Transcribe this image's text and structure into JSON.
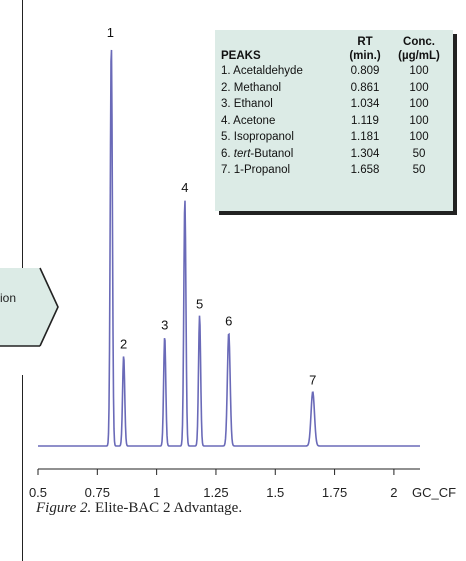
{
  "callout": {
    "text": "ion"
  },
  "table": {
    "headers": {
      "peaks": "PEAKS",
      "rt_top": "RT",
      "rt_bottom": "(min.)",
      "conc_top": "Conc.",
      "conc_bottom": "(µg/mL)"
    },
    "rows": [
      {
        "name": "1. Acetaldehyde",
        "name_prefix": "",
        "name_italic": "",
        "name_suffix": "",
        "rt": "0.809",
        "conc": "100"
      },
      {
        "name": "2. Methanol",
        "name_prefix": "",
        "name_italic": "",
        "name_suffix": "",
        "rt": "0.861",
        "conc": "100"
      },
      {
        "name": "3. Ethanol",
        "name_prefix": "",
        "name_italic": "",
        "name_suffix": "",
        "rt": "1.034",
        "conc": "100"
      },
      {
        "name": "4. Acetone",
        "name_prefix": "",
        "name_italic": "",
        "name_suffix": "",
        "rt": "1.119",
        "conc": "100"
      },
      {
        "name": "5. Isopropanol",
        "name_prefix": "",
        "name_italic": "",
        "name_suffix": "",
        "rt": "1.181",
        "conc": "100"
      },
      {
        "name": "",
        "name_prefix": "6. ",
        "name_italic": "tert",
        "name_suffix": "-Butanol",
        "rt": "1.304",
        "conc": "50"
      },
      {
        "name": "7. 1-Propanol",
        "name_prefix": "",
        "name_italic": "",
        "name_suffix": "",
        "rt": "1.658",
        "conc": "50"
      }
    ]
  },
  "caption": {
    "figure": "Figure 2.",
    "text": " Elite-BAC 2 Advantage."
  },
  "chart_data": {
    "type": "line",
    "x_unit_label": "GC_CF",
    "xlim": [
      0.5,
      2.11
    ],
    "ylim": [
      0,
      1
    ],
    "xticks": [
      0.5,
      0.75,
      1,
      1.25,
      1.5,
      1.75,
      2
    ],
    "xtick_labels": [
      "0.5",
      "0.75",
      "1",
      "1.25",
      "1.5",
      "1.75",
      "2"
    ],
    "baseline": 0.0,
    "line_color": "#6a6ab8",
    "peaks": [
      {
        "label": "1",
        "rt": 0.809,
        "height": 1.0
      },
      {
        "label": "2",
        "rt": 0.861,
        "height": 0.225
      },
      {
        "label": "3",
        "rt": 1.034,
        "height": 0.273
      },
      {
        "label": "4",
        "rt": 1.119,
        "height": 0.615
      },
      {
        "label": "5",
        "rt": 1.181,
        "height": 0.325
      },
      {
        "label": "6",
        "rt": 1.304,
        "height": 0.282
      },
      {
        "label": "7",
        "rt": 1.658,
        "height": 0.135
      }
    ]
  }
}
